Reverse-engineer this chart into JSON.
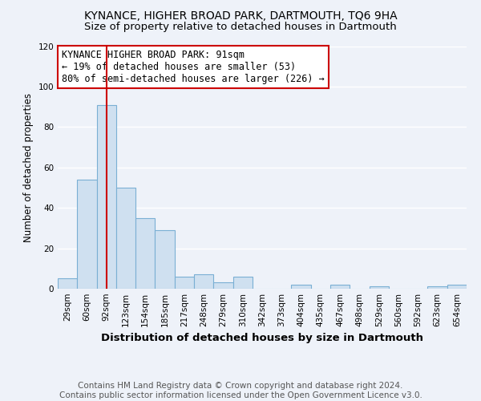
{
  "title": "KYNANCE, HIGHER BROAD PARK, DARTMOUTH, TQ6 9HA",
  "subtitle": "Size of property relative to detached houses in Dartmouth",
  "xlabel": "Distribution of detached houses by size in Dartmouth",
  "ylabel": "Number of detached properties",
  "bin_labels": [
    "29sqm",
    "60sqm",
    "92sqm",
    "123sqm",
    "154sqm",
    "185sqm",
    "217sqm",
    "248sqm",
    "279sqm",
    "310sqm",
    "342sqm",
    "373sqm",
    "404sqm",
    "435sqm",
    "467sqm",
    "498sqm",
    "529sqm",
    "560sqm",
    "592sqm",
    "623sqm",
    "654sqm"
  ],
  "bar_values": [
    5,
    54,
    91,
    50,
    35,
    29,
    6,
    7,
    3,
    6,
    0,
    0,
    2,
    0,
    2,
    0,
    1,
    0,
    0,
    1,
    2
  ],
  "bar_color": "#cfe0f0",
  "bar_edge_color": "#7aafd4",
  "reference_line_x": 2,
  "reference_line_color": "#cc0000",
  "ylim": [
    0,
    120
  ],
  "yticks": [
    0,
    20,
    40,
    60,
    80,
    100,
    120
  ],
  "annotation_title": "KYNANCE HIGHER BROAD PARK: 91sqm",
  "annotation_line1": "← 19% of detached houses are smaller (53)",
  "annotation_line2": "80% of semi-detached houses are larger (226) →",
  "annotation_box_color": "#ffffff",
  "annotation_border_color": "#cc0000",
  "footer_line1": "Contains HM Land Registry data © Crown copyright and database right 2024.",
  "footer_line2": "Contains public sector information licensed under the Open Government Licence v3.0.",
  "background_color": "#eef2f9",
  "grid_color": "#ffffff",
  "title_fontsize": 10,
  "subtitle_fontsize": 9.5,
  "xlabel_fontsize": 9.5,
  "ylabel_fontsize": 8.5,
  "tick_fontsize": 7.5,
  "annotation_fontsize": 8.5,
  "footer_fontsize": 7.5
}
